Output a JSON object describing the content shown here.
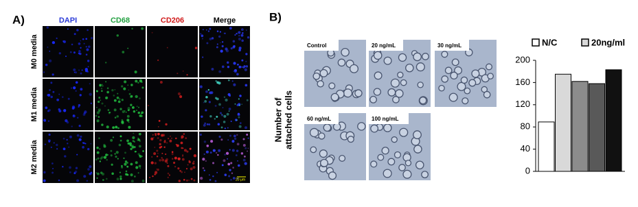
{
  "panel_a": {
    "label": "A)",
    "columns": [
      "DAPI",
      "CD68",
      "CD206",
      "Merge"
    ],
    "rows": [
      "M0 media",
      "M1 media",
      "M2 media"
    ],
    "scale_bar": "20 μm"
  },
  "panel_b": {
    "label": "B)",
    "images": [
      "Control",
      "20 ng/mL",
      "30 ng/mL",
      "60 ng/mL",
      "100 ng/mL"
    ]
  },
  "chart_data": {
    "type": "bar",
    "ylabel_lines": [
      "Number of",
      "attached cells"
    ],
    "categories": [
      null,
      null,
      null,
      null,
      null
    ],
    "values": [
      89,
      175,
      162,
      158,
      183
    ],
    "colors": [
      "#ffffff",
      "#d9d9d9",
      "#8c8c8c",
      "#595959",
      "#111111"
    ],
    "legend": [
      {
        "name": "N/C",
        "color": "#ffffff"
      },
      {
        "name": "20ng/ml",
        "color": "#d9d9d9"
      }
    ],
    "ylim": [
      0,
      200
    ],
    "yticks": [
      0,
      40,
      80,
      120,
      160,
      200
    ]
  }
}
